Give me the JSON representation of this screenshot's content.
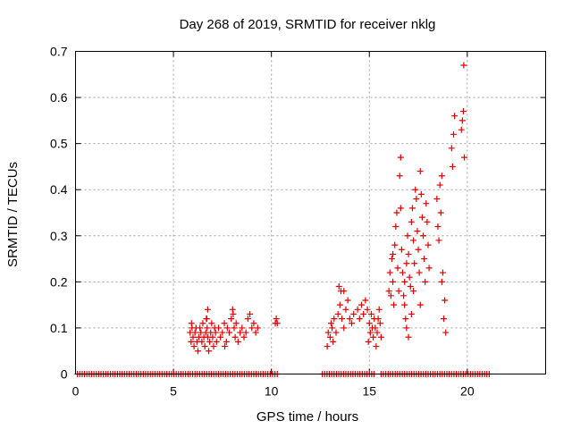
{
  "chart_data": {
    "type": "scatter",
    "title": "Day 268 of 2019, SRMTID for receiver nklg",
    "xlabel": "GPS time / hours",
    "ylabel": "SRMTID / TECUs",
    "xlim": [
      0,
      24
    ],
    "ylim": [
      0,
      0.7
    ],
    "xticks": [
      "0",
      "5",
      "10",
      "15",
      "20"
    ],
    "yticks": [
      "0",
      "0.1",
      "0.2",
      "0.3",
      "0.4",
      "0.5",
      "0.6",
      "0.7"
    ],
    "grid": true,
    "marker": "+",
    "color": "#dd0000",
    "zero_segments": [
      [
        0.1,
        10.4
      ],
      [
        12.6,
        15.3
      ],
      [
        15.6,
        21.2
      ]
    ],
    "series": [
      {
        "name": "SRMTID",
        "points": [
          [
            5.85,
            0.09
          ],
          [
            5.9,
            0.07
          ],
          [
            5.95,
            0.1
          ],
          [
            6.0,
            0.08
          ],
          [
            6.05,
            0.06
          ],
          [
            6.1,
            0.09
          ],
          [
            6.15,
            0.1
          ],
          [
            6.2,
            0.07
          ],
          [
            6.25,
            0.05
          ],
          [
            6.3,
            0.08
          ],
          [
            6.35,
            0.1
          ],
          [
            6.4,
            0.09
          ],
          [
            6.45,
            0.07
          ],
          [
            6.5,
            0.11
          ],
          [
            6.55,
            0.08
          ],
          [
            6.6,
            0.06
          ],
          [
            6.65,
            0.09
          ],
          [
            6.7,
            0.12
          ],
          [
            6.72,
            0.1
          ],
          [
            6.75,
            0.08
          ],
          [
            6.8,
            0.05
          ],
          [
            6.85,
            0.07
          ],
          [
            6.9,
            0.09
          ],
          [
            6.95,
            0.11
          ],
          [
            7.0,
            0.08
          ],
          [
            7.05,
            0.06
          ],
          [
            7.1,
            0.1
          ],
          [
            7.15,
            0.09
          ],
          [
            7.2,
            0.07
          ],
          [
            7.3,
            0.1
          ],
          [
            7.4,
            0.08
          ],
          [
            7.5,
            0.09
          ],
          [
            7.6,
            0.11
          ],
          [
            7.7,
            0.07
          ],
          [
            7.75,
            0.1
          ],
          [
            7.85,
            0.09
          ],
          [
            7.95,
            0.12
          ],
          [
            8.05,
            0.13
          ],
          [
            8.1,
            0.1
          ],
          [
            8.15,
            0.08
          ],
          [
            8.2,
            0.11
          ],
          [
            8.3,
            0.07
          ],
          [
            8.4,
            0.09
          ],
          [
            8.5,
            0.1
          ],
          [
            8.6,
            0.08
          ],
          [
            8.7,
            0.09
          ],
          [
            8.8,
            0.12
          ],
          [
            8.9,
            0.13
          ],
          [
            9.0,
            0.1
          ],
          [
            9.1,
            0.11
          ],
          [
            9.2,
            0.09
          ],
          [
            9.3,
            0.1
          ],
          [
            10.2,
            0.11
          ],
          [
            10.25,
            0.12
          ],
          [
            10.3,
            0.11
          ],
          [
            6.75,
            0.14
          ],
          [
            6.68,
            0.12
          ],
          [
            8.02,
            0.14
          ],
          [
            5.92,
            0.11
          ],
          [
            7.62,
            0.06
          ],
          [
            12.85,
            0.06
          ],
          [
            12.9,
            0.09
          ],
          [
            13.0,
            0.08
          ],
          [
            13.05,
            0.11
          ],
          [
            13.1,
            0.1
          ],
          [
            13.2,
            0.12
          ],
          [
            13.3,
            0.09
          ],
          [
            13.4,
            0.13
          ],
          [
            13.5,
            0.15
          ],
          [
            13.55,
            0.18
          ],
          [
            13.6,
            0.12
          ],
          [
            13.7,
            0.1
          ],
          [
            13.8,
            0.14
          ],
          [
            13.9,
            0.16
          ],
          [
            14.0,
            0.12
          ],
          [
            14.1,
            0.11
          ],
          [
            14.2,
            0.13
          ],
          [
            14.4,
            0.14
          ],
          [
            14.5,
            0.12
          ],
          [
            14.6,
            0.15
          ],
          [
            14.7,
            0.13
          ],
          [
            14.8,
            0.16
          ],
          [
            14.9,
            0.14
          ],
          [
            15.0,
            0.11
          ],
          [
            15.05,
            0.09
          ],
          [
            15.1,
            0.13
          ],
          [
            15.15,
            0.1
          ],
          [
            15.2,
            0.08
          ],
          [
            15.25,
            0.12
          ],
          [
            15.3,
            0.1
          ],
          [
            15.4,
            0.09
          ],
          [
            15.45,
            0.12
          ],
          [
            15.5,
            0.14
          ],
          [
            15.55,
            0.11
          ],
          [
            13.45,
            0.19
          ],
          [
            13.7,
            0.18
          ],
          [
            14.95,
            0.07
          ],
          [
            15.35,
            0.06
          ],
          [
            15.6,
            0.08
          ],
          [
            13.15,
            0.07
          ],
          [
            16.0,
            0.18
          ],
          [
            16.05,
            0.22
          ],
          [
            16.1,
            0.17
          ],
          [
            16.15,
            0.25
          ],
          [
            16.2,
            0.2
          ],
          [
            16.25,
            0.15
          ],
          [
            16.3,
            0.28
          ],
          [
            16.35,
            0.32
          ],
          [
            16.4,
            0.35
          ],
          [
            16.45,
            0.23
          ],
          [
            16.5,
            0.18
          ],
          [
            16.55,
            0.43
          ],
          [
            16.6,
            0.47
          ],
          [
            16.65,
            0.27
          ],
          [
            16.7,
            0.22
          ],
          [
            16.75,
            0.17
          ],
          [
            16.8,
            0.15
          ],
          [
            16.85,
            0.12
          ],
          [
            16.9,
            0.1
          ],
          [
            16.95,
            0.3
          ],
          [
            17.0,
            0.26
          ],
          [
            17.05,
            0.21
          ],
          [
            17.1,
            0.19
          ],
          [
            17.15,
            0.33
          ],
          [
            17.2,
            0.36
          ],
          [
            17.25,
            0.29
          ],
          [
            17.3,
            0.24
          ],
          [
            17.35,
            0.4
          ],
          [
            17.4,
            0.38
          ],
          [
            17.45,
            0.31
          ],
          [
            17.5,
            0.27
          ],
          [
            17.55,
            0.22
          ],
          [
            17.6,
            0.44
          ],
          [
            17.65,
            0.39
          ],
          [
            17.7,
            0.34
          ],
          [
            17.75,
            0.3
          ],
          [
            17.8,
            0.25
          ],
          [
            17.85,
            0.2
          ],
          [
            17.9,
            0.37
          ],
          [
            17.95,
            0.33
          ],
          [
            18.0,
            0.28
          ],
          [
            18.05,
            0.23
          ],
          [
            18.45,
            0.38
          ],
          [
            18.5,
            0.32
          ],
          [
            18.55,
            0.29
          ],
          [
            18.6,
            0.41
          ],
          [
            18.65,
            0.35
          ],
          [
            18.7,
            0.43
          ],
          [
            18.75,
            0.22
          ],
          [
            18.8,
            0.12
          ],
          [
            18.85,
            0.16
          ],
          [
            18.9,
            0.09
          ],
          [
            19.2,
            0.49
          ],
          [
            19.25,
            0.45
          ],
          [
            19.3,
            0.52
          ],
          [
            19.35,
            0.56
          ],
          [
            19.7,
            0.53
          ],
          [
            19.75,
            0.55
          ],
          [
            19.8,
            0.57
          ],
          [
            19.82,
            0.67
          ],
          [
            19.85,
            0.47
          ],
          [
            16.6,
            0.36
          ],
          [
            17.15,
            0.13
          ],
          [
            16.8,
            0.2
          ],
          [
            17.0,
            0.08
          ],
          [
            17.25,
            0.18
          ],
          [
            18.7,
            0.2
          ],
          [
            16.2,
            0.26
          ],
          [
            17.6,
            0.15
          ],
          [
            16.9,
            0.24
          ]
        ]
      }
    ]
  }
}
